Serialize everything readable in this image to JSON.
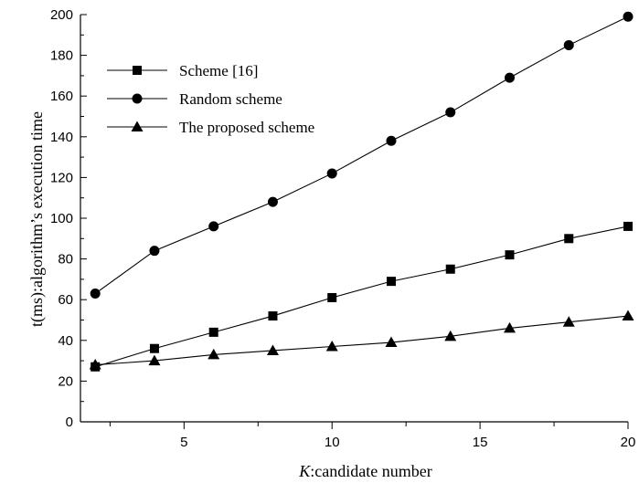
{
  "chart_data": {
    "type": "line",
    "title": "",
    "xlabel_italic": "K",
    "xlabel_rest": ":candidate number",
    "ylabel": "t(ms):algorithm’s execution time",
    "xlim": [
      1.5,
      20
    ],
    "ylim": [
      0,
      200
    ],
    "x_ticks": [
      5,
      10,
      15,
      20
    ],
    "x_minor_ticks": [
      2.5,
      7.5,
      12.5,
      17.5
    ],
    "y_ticks": [
      0,
      20,
      40,
      60,
      80,
      100,
      120,
      140,
      160,
      180,
      200
    ],
    "grid": false,
    "legend_position": "upper-left",
    "x": [
      2,
      4,
      6,
      8,
      10,
      12,
      14,
      16,
      18,
      20
    ],
    "series": [
      {
        "name": "Scheme [16]",
        "marker": "square",
        "values": [
          27,
          36,
          44,
          52,
          61,
          69,
          75,
          82,
          90,
          96
        ]
      },
      {
        "name": "Random scheme",
        "marker": "circle",
        "values": [
          63,
          84,
          96,
          108,
          122,
          138,
          152,
          169,
          185,
          199
        ]
      },
      {
        "name": "The proposed scheme",
        "marker": "triangle",
        "values": [
          28,
          30,
          33,
          35,
          37,
          39,
          42,
          46,
          49,
          52
        ]
      }
    ]
  }
}
